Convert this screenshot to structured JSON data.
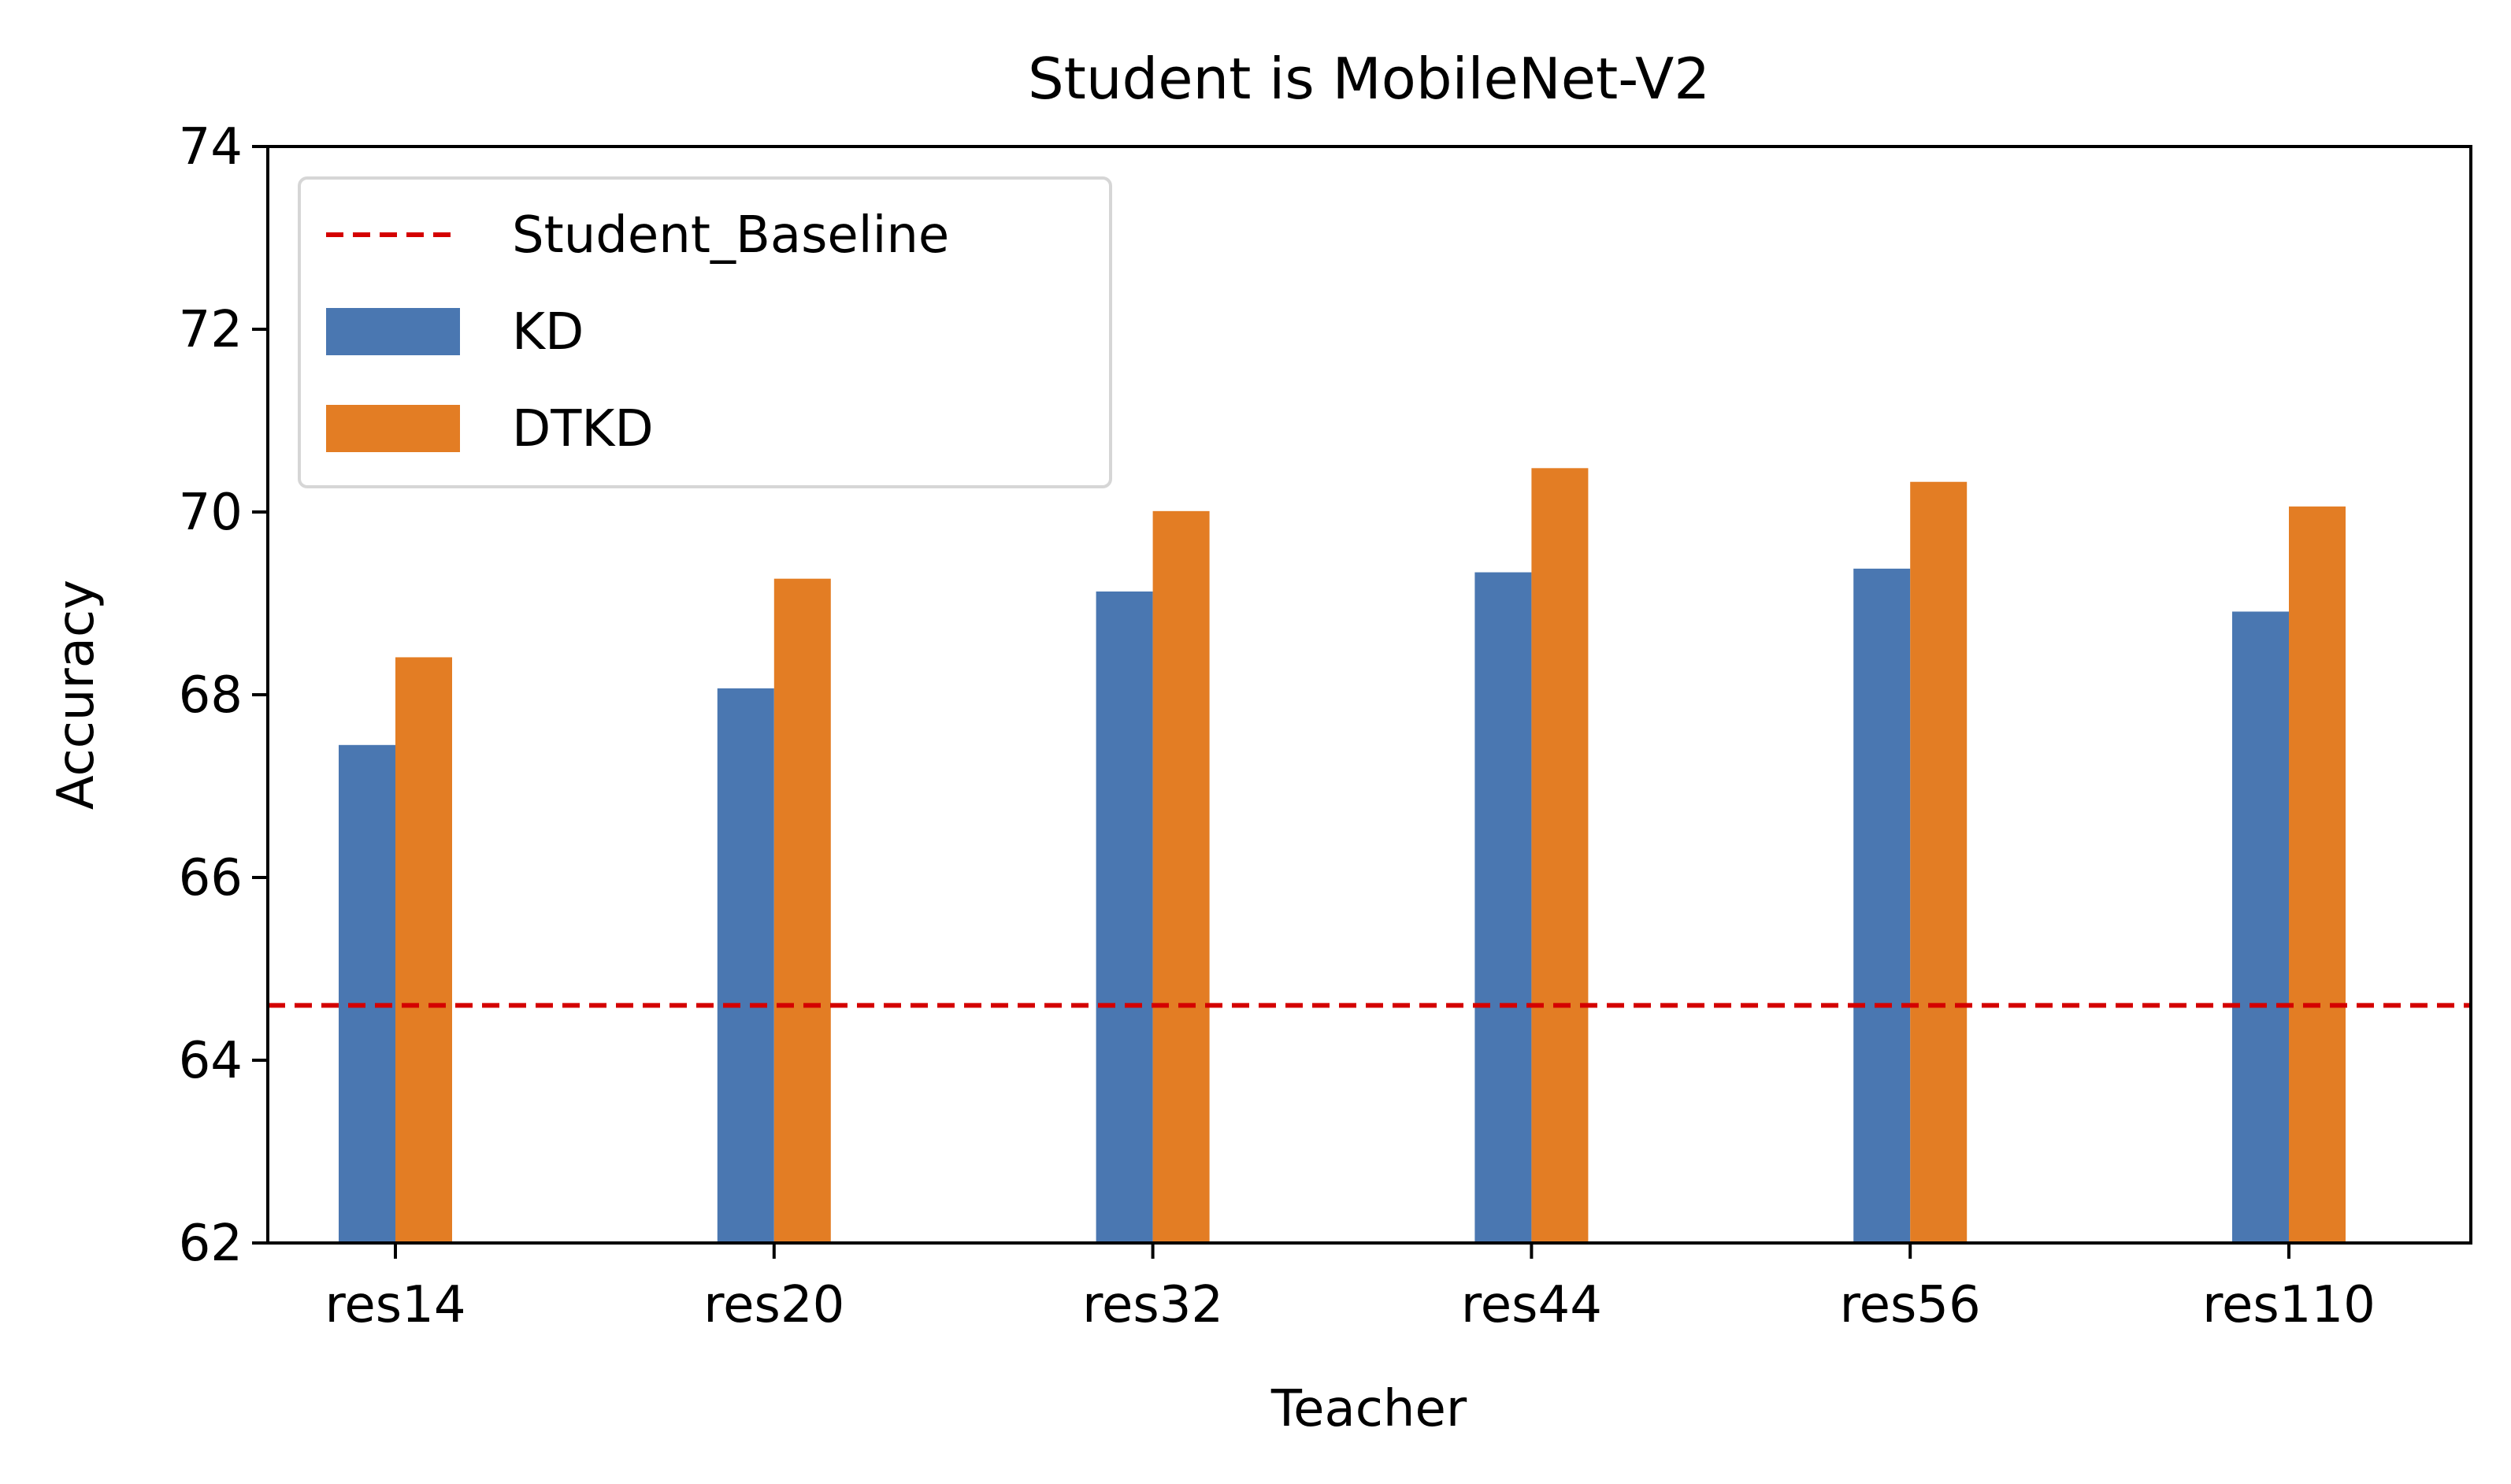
{
  "chart_data": {
    "type": "bar",
    "title": "Student is MobileNet-V2",
    "xlabel": "Teacher",
    "ylabel": "Accuracy",
    "categories": [
      "res14",
      "res20",
      "res32",
      "res44",
      "res56",
      "res110"
    ],
    "series": [
      {
        "name": "KD",
        "color": "#4a77b1",
        "values": [
          67.45,
          68.07,
          69.13,
          69.34,
          69.38,
          68.91
        ]
      },
      {
        "name": "DTKD",
        "color": "#e37d24",
        "values": [
          68.41,
          69.27,
          70.01,
          70.48,
          70.33,
          70.06
        ]
      }
    ],
    "baseline": {
      "name": "Student_Baseline",
      "value": 64.6,
      "color": "#d40000",
      "style": "dashed"
    },
    "ylim": [
      62,
      74
    ],
    "yticks": [
      62,
      64,
      66,
      68,
      70,
      72,
      74
    ],
    "grid": false,
    "legend": {
      "position": "top-left",
      "order": [
        "Student_Baseline",
        "KD",
        "DTKD"
      ]
    }
  }
}
